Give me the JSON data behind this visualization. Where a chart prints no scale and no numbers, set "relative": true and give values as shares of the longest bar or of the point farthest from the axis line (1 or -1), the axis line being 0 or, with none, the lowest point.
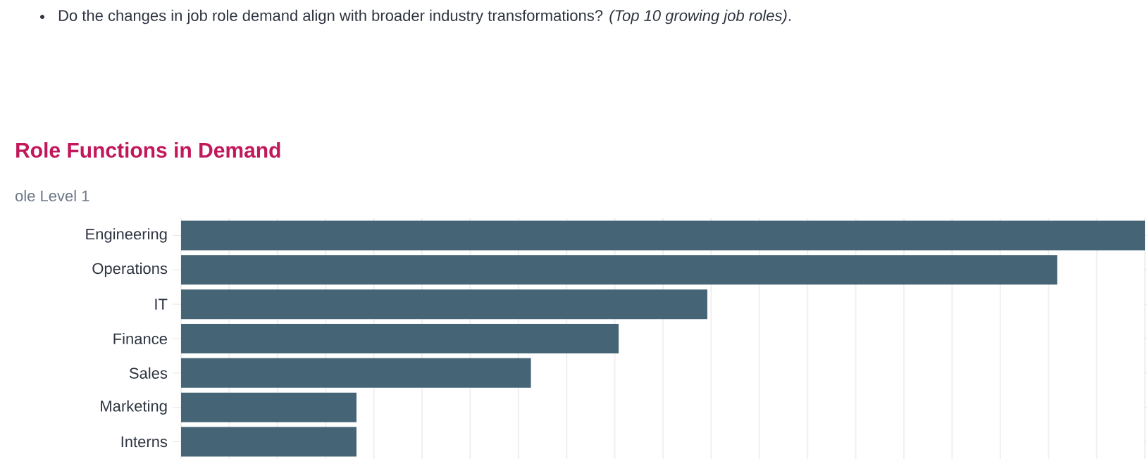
{
  "chart_data": {
    "type": "bar",
    "orientation": "horizontal",
    "relative": true,
    "title": "Role Functions in Demand",
    "subtitle": "ole Level 1",
    "annotations": [
      "Do the changes in job role demand align with broader industry transformations? *(Top 10 growing job roles)*."
    ],
    "categories": [
      "Engineering",
      "Operations",
      "IT",
      "Finance",
      "Sales",
      "Marketing",
      "Interns"
    ],
    "values": [
      1,
      0.909,
      0.546,
      0.454,
      0.363,
      0.182,
      0.182
    ],
    "color": "#456476",
    "grid": "x"
  }
}
